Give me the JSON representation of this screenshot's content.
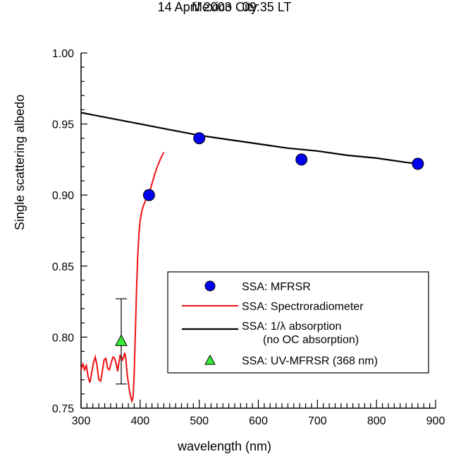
{
  "chart_data": {
    "type": "line",
    "title": [
      "Mexico City",
      "14 April 2003   09:35 LT"
    ],
    "xlabel": "wavelength (nm)",
    "ylabel": "Single scattering albedo",
    "xlim": [
      300,
      900
    ],
    "ylim": [
      0.75,
      1.0
    ],
    "x_ticks": [
      "300",
      "400",
      "500",
      "600",
      "700",
      "800",
      "900"
    ],
    "y_ticks": [
      "0.75",
      "0.80",
      "0.85",
      "0.90",
      "0.95",
      "1.00"
    ],
    "grid": false,
    "legend_position": "lower-right",
    "series": [
      {
        "name": "SSA: MFRSR",
        "kind": "scatter",
        "marker": "circle",
        "color": "#0000ee",
        "x": [
          415,
          500,
          673,
          870
        ],
        "y": [
          0.9,
          0.94,
          0.925,
          0.922
        ]
      },
      {
        "name": "SSA: Spectroradiometer",
        "kind": "line",
        "color": "#ee1111",
        "x": [
          300,
          303,
          306,
          309,
          312,
          315,
          318,
          321,
          324,
          327,
          330,
          333,
          336,
          339,
          342,
          345,
          348,
          351,
          354,
          357,
          360,
          362,
          364,
          366,
          368,
          370,
          372,
          374,
          376,
          378,
          380,
          382,
          384,
          386,
          388,
          390,
          392,
          394,
          396,
          398,
          400,
          403,
          406,
          409,
          412,
          416,
          420,
          425,
          430,
          435,
          440
        ],
        "y": [
          0.777,
          0.781,
          0.777,
          0.78,
          0.772,
          0.768,
          0.775,
          0.782,
          0.786,
          0.78,
          0.77,
          0.769,
          0.776,
          0.784,
          0.785,
          0.778,
          0.777,
          0.782,
          0.786,
          0.785,
          0.78,
          0.776,
          0.782,
          0.787,
          0.786,
          0.784,
          0.786,
          0.789,
          0.784,
          0.774,
          0.768,
          0.762,
          0.758,
          0.755,
          0.758,
          0.775,
          0.805,
          0.835,
          0.858,
          0.873,
          0.882,
          0.889,
          0.893,
          0.896,
          0.899,
          0.902,
          0.908,
          0.915,
          0.921,
          0.926,
          0.93
        ]
      },
      {
        "name": "SSA: 1/λ absorption",
        "name2": "(no OC absorption)",
        "kind": "line",
        "color": "#000000",
        "x": [
          300,
          350,
          400,
          450,
          500,
          550,
          600,
          650,
          700,
          750,
          800,
          850,
          870
        ],
        "y": [
          0.958,
          0.954,
          0.95,
          0.946,
          0.942,
          0.939,
          0.936,
          0.933,
          0.931,
          0.928,
          0.926,
          0.923,
          0.922
        ]
      },
      {
        "name": "SSA: UV-MFRSR (368 nm)",
        "kind": "scatter",
        "marker": "triangle",
        "color": "#33ee33",
        "x": [
          368
        ],
        "y": [
          0.797
        ],
        "error": [
          0.03
        ]
      }
    ]
  }
}
